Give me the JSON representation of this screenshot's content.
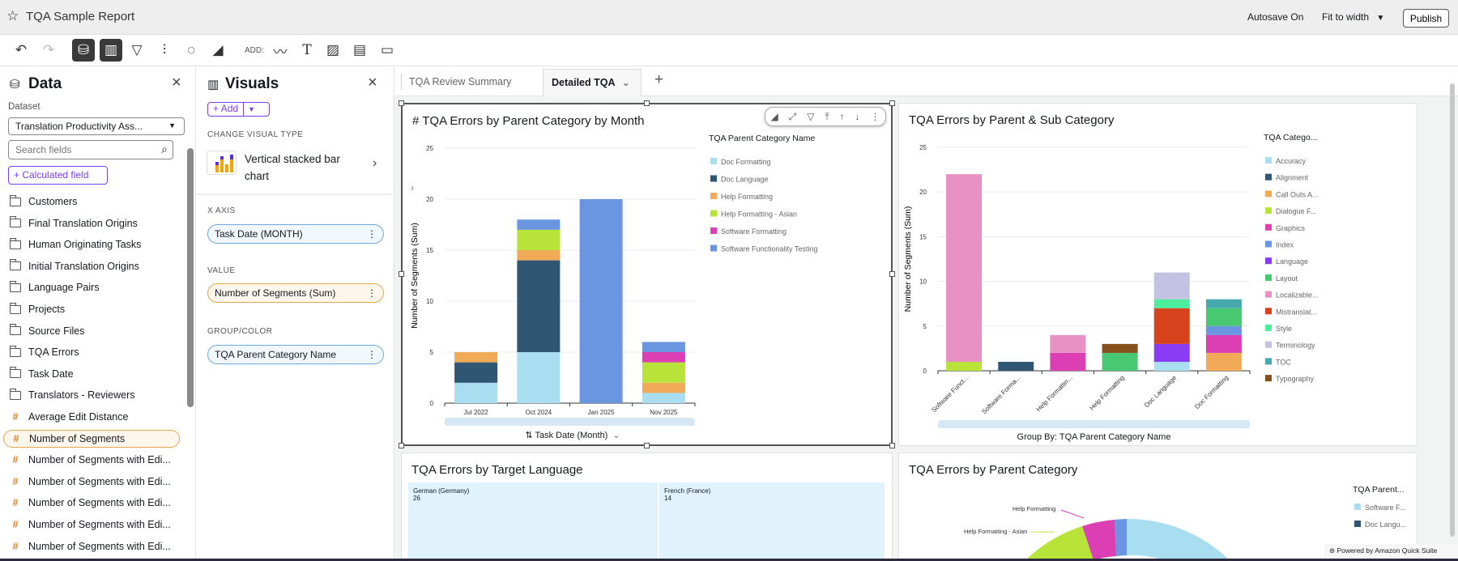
{
  "app": {
    "title": "TQA Sample Report",
    "autosave": "Autosave On",
    "fit": "Fit to width",
    "publish": "Publish",
    "add_label": "ADD:",
    "powered": "Powered by Amazon Quick Suite"
  },
  "toolbar": {
    "icons": [
      "undo-icon",
      "redo-icon",
      "dataset-icon",
      "visuals-icon",
      "filter-icon",
      "controls-icon",
      "insights-icon",
      "themes-icon"
    ],
    "add_icons": [
      "line-icon",
      "text-icon",
      "image-icon",
      "insight-visual-icon",
      "embed-icon"
    ]
  },
  "data_panel": {
    "title": "Data",
    "dataset_label": "Dataset",
    "dataset_value": "Translation Productivity Ass...",
    "search_placeholder": "Search fields",
    "calc_field": "Calculated field",
    "folders": [
      "Customers",
      "Final Translation Origins",
      "Human Originating Tasks",
      "Initial Translation Origins",
      "Language Pairs",
      "Projects",
      "Source Files",
      "TQA Errors",
      "Task Date",
      "Translators - Reviewers"
    ],
    "measures": [
      "Average Edit Distance",
      "Number of Segments",
      "Number of Segments with Edi...",
      "Number of Segments with Edi...",
      "Number of Segments with Edi...",
      "Number of Segments with Edi...",
      "Number of Segments with Edi..."
    ],
    "selected_measure": "Number of Segments"
  },
  "visuals_panel": {
    "title": "Visuals",
    "add": "Add",
    "change_type_label": "CHANGE VISUAL TYPE",
    "visual_type": "Vertical stacked bar chart",
    "x_axis_label": "X AXIS",
    "x_axis_field": "Task Date (MONTH)",
    "value_label": "VALUE",
    "value_field": "Number of Segments (Sum)",
    "group_label": "GROUP/COLOR",
    "group_field": "TQA Parent Category Name"
  },
  "tabs": [
    {
      "label": "TQA Review Summary",
      "active": false
    },
    {
      "label": "Detailed TQA",
      "active": true
    }
  ],
  "chart_data": [
    {
      "type": "bar",
      "stacked": true,
      "title": "# TQA Errors by Parent Category by Month",
      "xlabel": "Task Date (Month)",
      "ylabel": "Number of Segments (Sum)",
      "ylim": [
        0,
        25
      ],
      "yticks": [
        0,
        5,
        10,
        15,
        20,
        25
      ],
      "legend_title": "TQA Parent Category Name",
      "legend": "right",
      "categories": [
        "Jul 2022",
        "Oct 2024",
        "Jan 2025",
        "Nov 2025"
      ],
      "series": [
        {
          "name": "Doc Formatting",
          "color": "#a8def0",
          "values": [
            2,
            5,
            0,
            1
          ]
        },
        {
          "name": "Doc Language",
          "color": "#2f5673",
          "values": [
            2,
            9,
            0,
            0
          ]
        },
        {
          "name": "Help Formatting",
          "color": "#f0aa58",
          "values": [
            1,
            1,
            0,
            1
          ]
        },
        {
          "name": "Help Formatting - Asian",
          "color": "#b8e43a",
          "values": [
            0,
            2,
            0,
            2
          ]
        },
        {
          "name": "Software Formatting",
          "color": "#dc3fb4",
          "values": [
            0,
            0,
            0,
            1
          ]
        },
        {
          "name": "Software Functionality Testing",
          "color": "#6a95e0",
          "values": [
            0,
            1,
            20,
            1
          ]
        }
      ]
    },
    {
      "type": "bar",
      "stacked": true,
      "title": "TQA Errors by Parent & Sub Category",
      "xlabel": "Group By: TQA Parent Category Name",
      "ylabel": "Number of Segments (Sum)",
      "ylim": [
        0,
        25
      ],
      "yticks": [
        0,
        5,
        10,
        15,
        20,
        25
      ],
      "legend_title": "TQA Catego...",
      "legend": "right",
      "categories": [
        "Software Funct...",
        "Software Forma...",
        "Help Formattin...",
        "Help Formatting",
        "Doc Language",
        "Doc Formatting"
      ],
      "series": [
        {
          "name": "Accuracy",
          "color": "#a8def0",
          "values": [
            0,
            0,
            0,
            0,
            1,
            0
          ]
        },
        {
          "name": "Alignment",
          "color": "#2f5673",
          "values": [
            0,
            1,
            0,
            0,
            0,
            0
          ]
        },
        {
          "name": "Call Outs A...",
          "color": "#f0aa58",
          "values": [
            0,
            0,
            0,
            0,
            0,
            2
          ]
        },
        {
          "name": "Dialogue F...",
          "color": "#b8e43a",
          "values": [
            1,
            0,
            0,
            0,
            0,
            0
          ]
        },
        {
          "name": "Graphics",
          "color": "#dc3fb4",
          "values": [
            0,
            0,
            2,
            0,
            0,
            2
          ]
        },
        {
          "name": "Index",
          "color": "#6a95e0",
          "values": [
            0,
            0,
            0,
            0,
            0,
            1
          ]
        },
        {
          "name": "Language",
          "color": "#8a3cf5",
          "values": [
            0,
            0,
            0,
            0,
            2,
            0
          ]
        },
        {
          "name": "Layout",
          "color": "#48c870",
          "values": [
            0,
            0,
            0,
            2,
            0,
            2
          ]
        },
        {
          "name": "Localizable...",
          "color": "#e891c4",
          "values": [
            21,
            0,
            2,
            0,
            0,
            0
          ]
        },
        {
          "name": "Mistranslat...",
          "color": "#d6431c",
          "values": [
            0,
            0,
            0,
            0,
            4,
            0
          ]
        },
        {
          "name": "Style",
          "color": "#4ded9e",
          "values": [
            0,
            0,
            0,
            0,
            1,
            0
          ]
        },
        {
          "name": "Terminology",
          "color": "#c4c2e2",
          "values": [
            0,
            0,
            0,
            0,
            3,
            0
          ]
        },
        {
          "name": "TOC",
          "color": "#46a9ad",
          "values": [
            0,
            0,
            0,
            0,
            0,
            1
          ]
        },
        {
          "name": "Typography",
          "color": "#85501c",
          "values": [
            0,
            0,
            0,
            1,
            0,
            0
          ]
        }
      ]
    },
    {
      "type": "treemap",
      "title": "TQA Errors by Target Language",
      "items": [
        {
          "label": "German (Germany)",
          "value": 26
        },
        {
          "label": "French (France)",
          "value": 14
        }
      ]
    },
    {
      "type": "pie",
      "donut": true,
      "title": "TQA Errors by Parent Category",
      "legend_title": "TQA Parent...",
      "legend": "right",
      "legend_items": [
        {
          "name": "Software F...",
          "color": "#a8def0"
        },
        {
          "name": "Doc Langu...",
          "color": "#2f5673"
        }
      ],
      "labels": [
        {
          "name": "Help Formatting",
          "color": "#dc3fb4"
        },
        {
          "name": "Help Formatting - Asian",
          "color": "#b8e43a"
        }
      ]
    }
  ]
}
